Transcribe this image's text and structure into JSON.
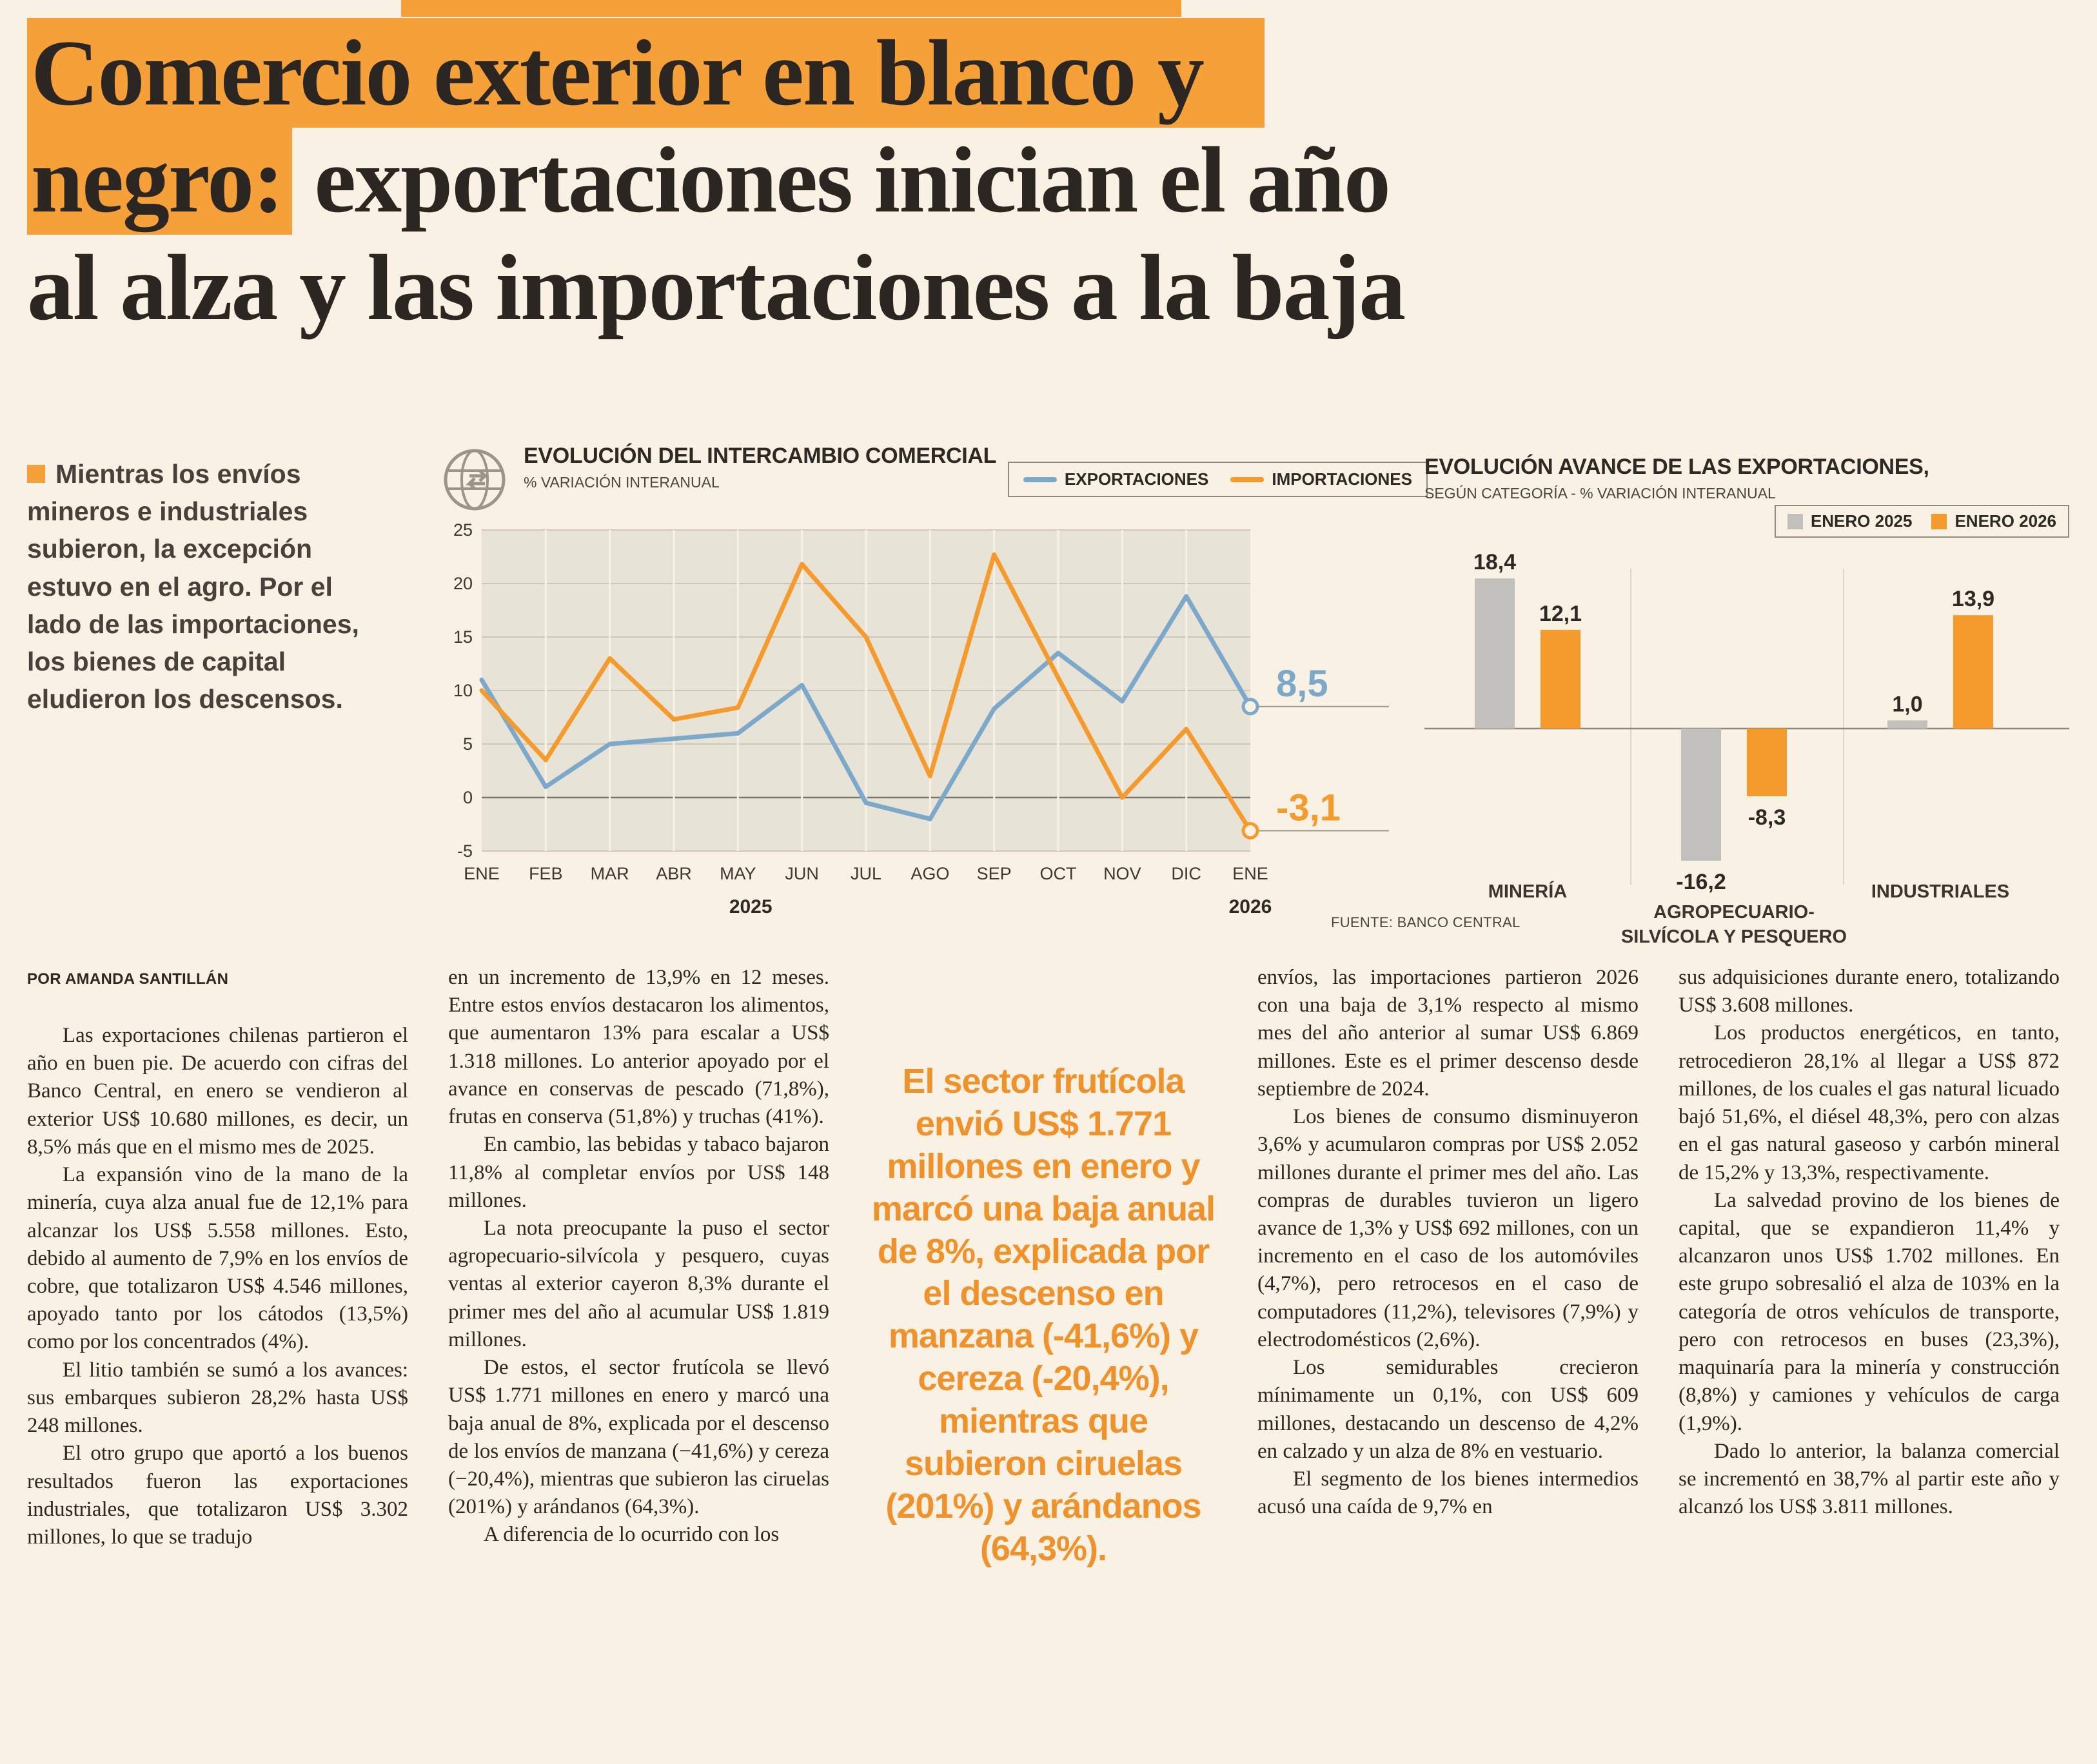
{
  "headline": {
    "line1_highlight": "Comercio exterior en blanco y",
    "line2_highlight": "negro:",
    "line2_rest": " exportaciones inician el año",
    "line3": "al alza y las importaciones a la baja"
  },
  "summary": {
    "text": "Mientras los envíos mineros e industriales subieron, la excepción estuvo en el agro. Por el lado de las importaciones, los bienes de capital eludieron los descensos."
  },
  "byline": "POR AMANDA SANTILLÁN",
  "source": "FUENTE: BANCO CENTRAL",
  "colors": {
    "accent_orange": "#f6a03a",
    "export_blue": "#7ca8ca",
    "import_orange": "#f59b2e",
    "bar_gray": "#c2c0bc",
    "pull_quote_orange": "#f0922b"
  },
  "chart_data": [
    {
      "type": "line",
      "title": "EVOLUCIÓN DEL INTERCAMBIO COMERCIAL",
      "subtitle": "% VARIACIÓN INTERANUAL",
      "x": [
        "ENE",
        "FEB",
        "MAR",
        "ABR",
        "MAY",
        "JUN",
        "JUL",
        "AGO",
        "SEP",
        "OCT",
        "NOV",
        "DIC",
        "ENE"
      ],
      "year_labels": [
        {
          "label": "2025",
          "index": 4.2
        },
        {
          "label": "2026",
          "index": 12
        }
      ],
      "ylim": [
        -5,
        25
      ],
      "yticks": [
        25,
        20,
        15,
        10,
        5,
        0,
        -5
      ],
      "grid": true,
      "legend_position": "top-right",
      "series": [
        {
          "name": "EXPORTACIONES",
          "color": "#7ca8ca",
          "end_label": "8,5",
          "values": [
            11,
            1,
            5,
            5.5,
            6,
            10.5,
            -0.5,
            -2,
            8.3,
            13.5,
            9,
            18.8,
            8.5
          ]
        },
        {
          "name": "IMPORTACIONES",
          "color": "#f59b2e",
          "end_label": "-3,1",
          "values": [
            10,
            3.5,
            13,
            7.3,
            8.4,
            21.8,
            15,
            2,
            22.7,
            11.2,
            0,
            6.4,
            -3.1
          ]
        }
      ]
    },
    {
      "type": "bar",
      "title": "EVOLUCIÓN AVANCE DE LAS EXPORTACIONES,",
      "subtitle": "SEGÚN CATEGORÍA - % VARIACIÓN INTERANUAL",
      "categories": [
        "MINERÍA",
        "AGROPECUARIO-\nSILVÍCOLA Y PESQUERO",
        "INDUSTRIALES"
      ],
      "ylim": [
        -20,
        22
      ],
      "legend_position": "top-right",
      "series": [
        {
          "name": "ENERO 2025",
          "color": "#c2c0bc",
          "values": [
            18.4,
            -16.2,
            1.0
          ],
          "labels": [
            "18,4",
            "-16,2",
            "1,0"
          ]
        },
        {
          "name": "ENERO 2026",
          "color": "#f59b2e",
          "values": [
            12.1,
            -8.3,
            13.9
          ],
          "labels": [
            "12,1",
            "-8,3",
            "13,9"
          ]
        }
      ]
    }
  ],
  "columns": {
    "col1": [
      "Las exportaciones chilenas partieron el año en buen pie. De acuerdo con cifras del Banco Central, en enero se vendieron al exterior US$ 10.680 millones, es decir, un 8,5% más que en el mismo mes de 2025.",
      "La expansión vino de la mano de la minería, cuya alza anual fue de 12,1% para alcanzar los US$ 5.558 millones. Esto, debido al aumento de 7,9% en los envíos de cobre, que totalizaron US$ 4.546 millones, apoyado tanto por los cátodos (13,5%) como por los concentrados (4%).",
      "El litio también se sumó a los avances: sus embarques subieron 28,2% hasta US$ 248 millones.",
      "El otro grupo que aportó a los buenos resultados fueron las exportaciones industriales, que totalizaron US$ 3.302 millones, lo que se tradujo"
    ],
    "col2": [
      "en un incremento de 13,9% en 12 meses. Entre estos envíos destacaron los alimentos, que aumentaron 13% para escalar a US$ 1.318 millones. Lo anterior apoyado por el avance en conservas de pescado (71,8%), frutas en conserva (51,8%) y truchas (41%).",
      "En cambio, las bebidas y tabaco bajaron 11,8% al completar envíos por US$ 148 millones.",
      "La nota preocupante la puso el sector agropecuario-silvícola y pesquero, cuyas ventas al exterior cayeron 8,3% durante el primer mes del año al acumular US$ 1.819 millones.",
      "De estos, el sector frutícola se llevó US$ 1.771 millones en enero y marcó una baja anual de 8%, explicada por el descenso de los envíos de manzana (−41,6%) y cereza (−20,4%), mientras que subieron las ciruelas (201%) y arándanos (64,3%).",
      "A diferencia de lo ocurrido con los"
    ],
    "col4": [
      "envíos, las importaciones partieron 2026 con una baja de 3,1% respecto al mismo mes del año anterior al sumar US$ 6.869 millones. Este es el primer descenso desde septiembre de 2024.",
      "Los bienes de consumo disminuyeron 3,6% y acumularon compras por US$ 2.052 millones durante el primer mes del año. Las compras de durables tuvieron un ligero avance de 1,3% y US$ 692 millones, con un incremento en el caso de los automóviles (4,7%), pero retrocesos en el caso de computadores (11,2%), televisores (7,9%) y electrodomésticos (2,6%).",
      "Los semidurables crecieron mínimamente un 0,1%, con US$ 609 millones, destacando un descenso de 4,2% en calzado y un alza de 8% en vestuario.",
      "El segmento de los bienes intermedios acusó una caída de 9,7% en"
    ],
    "col5": [
      "sus adquisiciones durante enero, totalizando US$ 3.608 millones.",
      "Los productos energéticos, en tanto, retrocedieron 28,1% al llegar a US$ 872 millones, de los cuales el gas natural licuado bajó 51,6%, el diésel 48,3%, pero con alzas en el gas natural gaseoso y carbón mineral de 15,2% y 13,3%, respectivamente.",
      "La salvedad provino de los bienes de capital, que se expandieron 11,4% y alcanzaron unos US$ 1.702 millones. En este grupo sobresalió el alza de 103% en la categoría de otros vehículos de transporte, pero con retrocesos en buses (23,3%), maquinaría para la minería y construcción (8,8%) y camiones y vehículos de carga (1,9%).",
      "Dado lo anterior, la balanza comercial se incrementó en 38,7% al partir este año y alcanzó los US$ 3.811 millones."
    ]
  },
  "pull_quote": "El sector frutícola envió US$ 1.771 millones en enero y marcó una baja anual de 8%, explicada por el descenso en manzana (-41,6%) y cereza (-20,4%), mientras que subieron ciruelas (201%) y arándanos (64,3%)."
}
